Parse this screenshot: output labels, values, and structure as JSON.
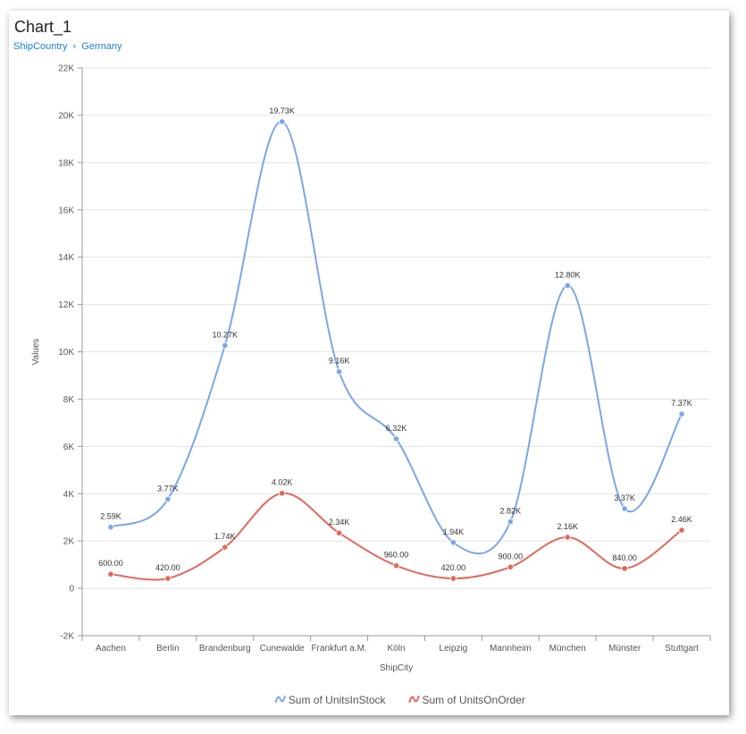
{
  "header": {
    "title": "Chart_1",
    "breadcrumb": [
      {
        "label": "ShipCountry"
      },
      {
        "label": "Germany"
      }
    ]
  },
  "chart_data": {
    "type": "line",
    "smooth": true,
    "xlabel": "ShipCity",
    "ylabel": "Values",
    "ylim": [
      -2000,
      22000
    ],
    "ytick_step": 2000,
    "yticks": [
      "-2K",
      "0",
      "2K",
      "4K",
      "6K",
      "8K",
      "10K",
      "12K",
      "14K",
      "16K",
      "18K",
      "20K",
      "22K"
    ],
    "grid": true,
    "legend_position": "bottom",
    "categories": [
      "Aachen",
      "Berlin",
      "Brandenburg",
      "Cunewalde",
      "Frankfurt a.M.",
      "Köln",
      "Leipzig",
      "Mannheim",
      "München",
      "Münster",
      "Stuttgart"
    ],
    "series": [
      {
        "name": "Sum of UnitsInStock",
        "color": "#7ba6e8",
        "values": [
          2590,
          3770,
          10270,
          19730,
          9160,
          6320,
          1940,
          2820,
          12800,
          3370,
          7370
        ],
        "labels": [
          "2.59K",
          "3.77K",
          "10.27K",
          "19.73K",
          "9.16K",
          "6.32K",
          "1.94K",
          "2.82K",
          "12.80K",
          "3.37K",
          "7.37K"
        ]
      },
      {
        "name": "Sum of UnitsOnOrder",
        "color": "#e0695c",
        "values": [
          600,
          420,
          1740,
          4020,
          2340,
          960,
          420,
          900,
          2160,
          840,
          2460
        ],
        "labels": [
          "600.00",
          "420.00",
          "1.74K",
          "4.02K",
          "2.34K",
          "960.00",
          "420.00",
          "900.00",
          "2.16K",
          "840.00",
          "2.46K"
        ]
      }
    ]
  }
}
